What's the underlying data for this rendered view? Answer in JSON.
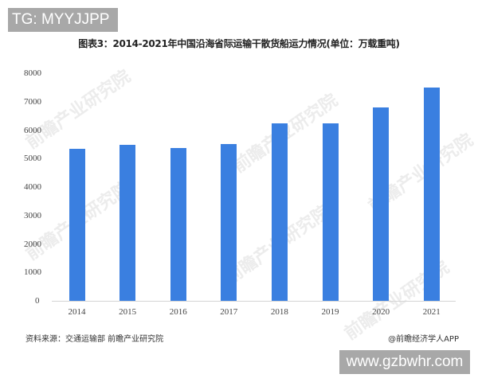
{
  "overlay": {
    "top_label": "TG: MYYJJPP",
    "bottom_label": "www.gzbwhr.com"
  },
  "watermark": "前瞻产业研究院",
  "footer": {
    "source": "资料来源：交通运输部 前瞻产业研究院",
    "credit": "@前瞻经济学人APP"
  },
  "colors": {
    "bar": "#3a7fe0",
    "overlay_bg": "#a8a8a8"
  },
  "chart_data": {
    "type": "bar",
    "title": "图表3：2014-2021年中国沿海省际运输干散货船运力情况(单位：万载重吨)",
    "xlabel": "",
    "ylabel": "万载重吨",
    "categories": [
      "2014",
      "2015",
      "2016",
      "2017",
      "2018",
      "2019",
      "2020",
      "2021"
    ],
    "values": [
      5340,
      5480,
      5360,
      5520,
      6250,
      6250,
      6810,
      7500
    ],
    "ylim": [
      0,
      8000
    ],
    "yticks": [
      "0",
      "1000",
      "2000",
      "3000",
      "4000",
      "5000",
      "6000",
      "7000",
      "8000"
    ],
    "grid": false,
    "legend": null
  }
}
